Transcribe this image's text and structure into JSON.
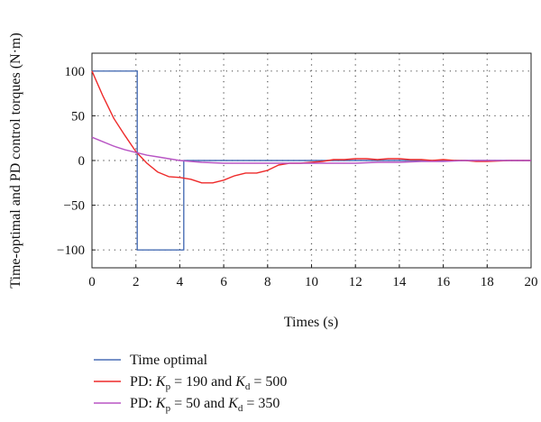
{
  "chart_data": {
    "type": "line",
    "title": "",
    "xlabel": "Times (s)",
    "ylabel": "Time-optimal and PD control torques (N·m)",
    "xlim": [
      0,
      20
    ],
    "ylim": [
      -120,
      120
    ],
    "xticks": [
      "0",
      "2",
      "4",
      "6",
      "8",
      "10",
      "12",
      "14",
      "16",
      "18",
      "20"
    ],
    "yticks": [
      "100",
      "50",
      "0",
      "−50",
      "−100"
    ],
    "grid": true,
    "legend_position": "below",
    "series": [
      {
        "name": "Time optimal",
        "color": "#4a6fb5",
        "x": [
          0,
          2.06,
          2.06,
          4.18,
          4.18,
          20
        ],
        "y": [
          100,
          100,
          -100,
          -100,
          0,
          0
        ]
      },
      {
        "name": "PD: Kp = 190 and Kd = 500",
        "color": "#ee2a2a",
        "x": [
          0,
          0.5,
          1.0,
          1.5,
          2.0,
          2.5,
          3.0,
          3.5,
          4.0,
          4.5,
          5.0,
          5.5,
          6.0,
          6.5,
          7.0,
          7.5,
          8.0,
          8.5,
          9.0,
          9.5,
          10.0,
          10.5,
          11.0,
          11.5,
          12.0,
          12.5,
          13.0,
          13.5,
          14.0,
          14.5,
          15.0,
          15.5,
          16.0,
          16.5,
          17.0,
          17.5,
          18.0,
          19.0,
          20.0
        ],
        "y": [
          100,
          72,
          47,
          28,
          10,
          -3,
          -13,
          -18,
          -19,
          -21,
          -25,
          -25,
          -22,
          -17,
          -14,
          -14,
          -11,
          -5,
          -3,
          -3,
          -2,
          -1,
          1,
          1,
          2,
          2,
          1,
          2,
          2,
          1,
          1,
          0,
          1,
          0,
          0,
          -1,
          -1,
          0,
          0
        ]
      },
      {
        "name": "PD: Kp = 50 and Kd = 350",
        "color": "#b855c4",
        "x": [
          0,
          0.5,
          1.0,
          1.5,
          2.0,
          2.5,
          3.0,
          3.5,
          4.0,
          4.5,
          5.0,
          6.0,
          7.0,
          8.0,
          9.0,
          10.0,
          11.0,
          12.0,
          13.0,
          14.0,
          15.0,
          16.0,
          17.0,
          18.0,
          20.0
        ],
        "y": [
          26,
          21,
          16,
          12,
          9,
          6,
          4,
          2,
          0,
          -1,
          -2,
          -3,
          -3,
          -3,
          -3,
          -3,
          -3,
          -3,
          -2,
          -2,
          -1,
          -1,
          0,
          0,
          0
        ]
      }
    ]
  },
  "legend": [
    {
      "color": "#4a6fb5",
      "parts": [
        {
          "t": "Time optimal"
        }
      ]
    },
    {
      "color": "#ee2a2a",
      "parts": [
        {
          "t": "PD: "
        },
        {
          "t": "K",
          "i": true
        },
        {
          "t": "p",
          "sub": true
        },
        {
          "t": " = 190 and "
        },
        {
          "t": "K",
          "i": true
        },
        {
          "t": "d",
          "sub": true
        },
        {
          "t": " = 500"
        }
      ]
    },
    {
      "color": "#b855c4",
      "parts": [
        {
          "t": "PD: "
        },
        {
          "t": "K",
          "i": true
        },
        {
          "t": "p",
          "sub": true
        },
        {
          "t": " = 50 and "
        },
        {
          "t": "K",
          "i": true
        },
        {
          "t": "d",
          "sub": true
        },
        {
          "t": " = 350"
        }
      ]
    }
  ]
}
